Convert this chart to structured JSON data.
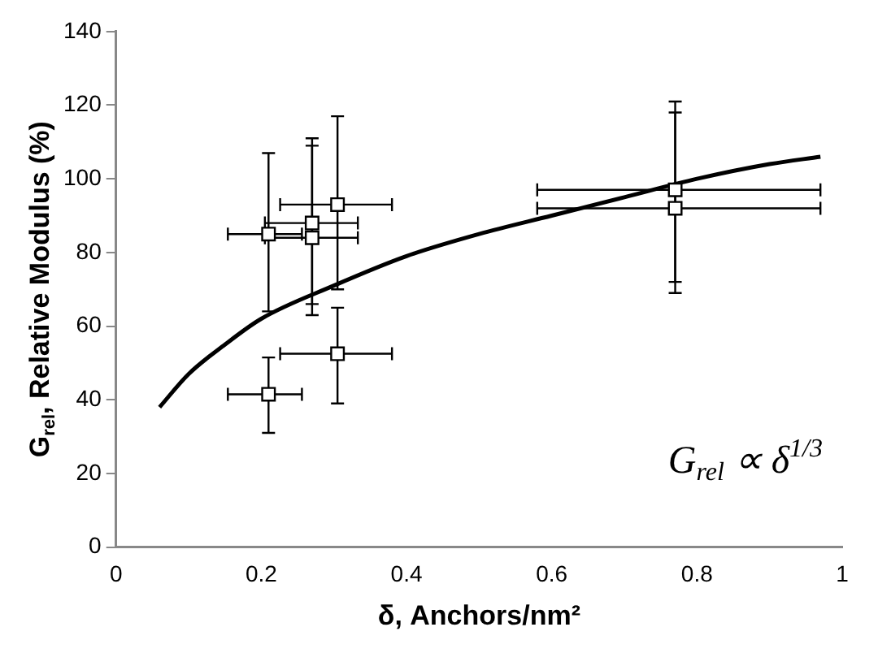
{
  "chart_data": {
    "type": "scatter",
    "xlabel": "δ, Anchors/nm²",
    "ylabel": "G$_{rel}$, Relative Modulus (%)",
    "xlim": [
      0,
      1
    ],
    "xticks": [
      0,
      0.2,
      0.4,
      0.6,
      0.8,
      1
    ],
    "ylim": [
      0,
      140
    ],
    "yticks": [
      0,
      20,
      40,
      60,
      80,
      100,
      120,
      140
    ],
    "grid": false,
    "legend": false,
    "marker": "square",
    "series": [
      {
        "type": "scatter",
        "color": "#000000",
        "x": [
          0.21,
          0.21,
          0.27,
          0.27,
          0.305,
          0.305,
          0.77,
          0.77
        ],
        "values": [
          85,
          41.5,
          88,
          84,
          93,
          52.5,
          97,
          92
        ],
        "errors": [
          [
            64,
            107
          ],
          [
            31,
            51.5
          ],
          [
            66,
            111
          ],
          [
            63,
            109
          ],
          [
            70,
            117
          ],
          [
            39,
            65
          ],
          [
            72,
            121
          ],
          [
            69,
            118
          ]
        ],
        "xerrors": [
          [
            0.154,
            0.256
          ],
          [
            0.154,
            0.256
          ],
          [
            0.205,
            0.333
          ],
          [
            0.205,
            0.333
          ],
          [
            0.226,
            0.38
          ],
          [
            0.226,
            0.38
          ],
          [
            0.58,
            0.97
          ],
          [
            0.58,
            0.97
          ]
        ]
      },
      {
        "type": "line",
        "color": "#000000",
        "marker": "none",
        "line_style": "solid",
        "x": [
          0.06,
          0.1,
          0.15,
          0.2,
          0.3,
          0.4,
          0.5,
          0.6,
          0.7,
          0.8,
          0.9,
          0.97
        ],
        "values": [
          38,
          47,
          55,
          62,
          71,
          79,
          85,
          90,
          95,
          100,
          104,
          106
        ]
      }
    ],
    "annotations": [
      "G$_{rel}$ ∝ δ$^{1/3}$"
    ]
  }
}
